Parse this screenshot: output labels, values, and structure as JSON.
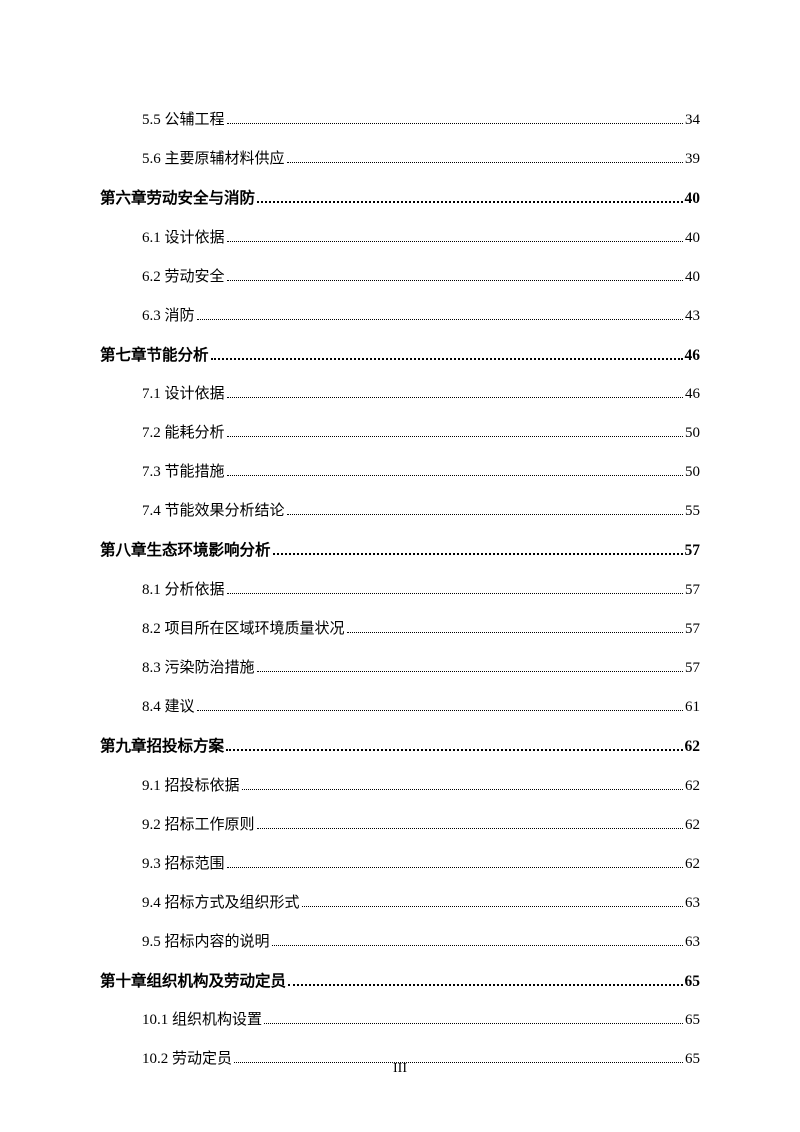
{
  "colors": {
    "text": "#000000",
    "background": "#ffffff"
  },
  "typography": {
    "body_fontsize": 15,
    "chapter_fontsize": 15.5,
    "font_family": "SimSun"
  },
  "page_footer": "III",
  "entries": [
    {
      "level": "section",
      "label": "5.5 公辅工程 ",
      "page": "34"
    },
    {
      "level": "section",
      "label": "5.6 主要原辅材料供应 ",
      "page": "39"
    },
    {
      "level": "chapter",
      "label": "第六章劳动安全与消防 ",
      "page": "40"
    },
    {
      "level": "section",
      "label": "6.1 设计依据 ",
      "page": "40"
    },
    {
      "level": "section",
      "label": "6.2 劳动安全 ",
      "page": "40"
    },
    {
      "level": "section",
      "label": "6.3 消防 ",
      "page": "43"
    },
    {
      "level": "chapter",
      "label": "第七章节能分析 ",
      "page": "46"
    },
    {
      "level": "section",
      "label": "7.1 设计依据 ",
      "page": "46"
    },
    {
      "level": "section",
      "label": "7.2 能耗分析 ",
      "page": "50"
    },
    {
      "level": "section",
      "label": "7.3 节能措施 ",
      "page": "50"
    },
    {
      "level": "section",
      "label": "7.4 节能效果分析结论 ",
      "page": "55"
    },
    {
      "level": "chapter",
      "label": "第八章生态环境影响分析 ",
      "page": "57"
    },
    {
      "level": "section",
      "label": "8.1 分析依据 ",
      "page": "57"
    },
    {
      "level": "section",
      "label": "8.2 项目所在区域环境质量状况 ",
      "page": "57"
    },
    {
      "level": "section",
      "label": "8.3 污染防治措施 ",
      "page": "57"
    },
    {
      "level": "section",
      "label": "8.4 建议",
      "page": "61"
    },
    {
      "level": "chapter",
      "label": "第九章招投标方案 ",
      "page": "62"
    },
    {
      "level": "section",
      "label": "9.1 招投标依据 ",
      "page": "62"
    },
    {
      "level": "section",
      "label": "9.2 招标工作原则 ",
      "page": "62"
    },
    {
      "level": "section",
      "label": "9.3 招标范围 ",
      "page": "62"
    },
    {
      "level": "section",
      "label": "9.4 招标方式及组织形式 ",
      "page": "63"
    },
    {
      "level": "section",
      "label": "9.5 招标内容的说明 ",
      "page": "63"
    },
    {
      "level": "chapter",
      "label": "第十章组织机构及劳动定员 ",
      "page": "65"
    },
    {
      "level": "section",
      "label": "10.1 组织机构设置 ",
      "page": "65"
    },
    {
      "level": "section",
      "label": "10.2 劳动定员 ",
      "page": "65"
    }
  ]
}
